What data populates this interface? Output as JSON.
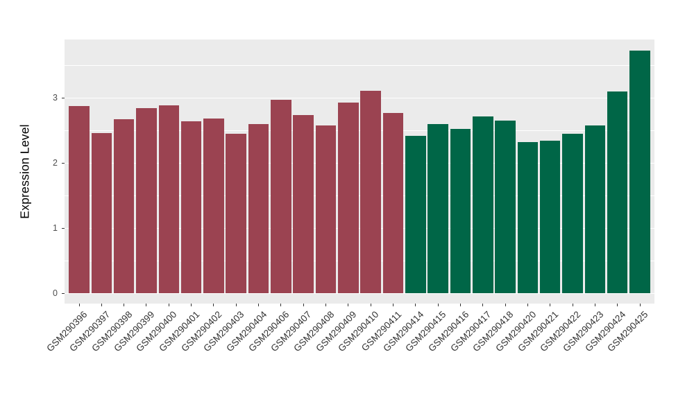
{
  "chart_data": {
    "type": "bar",
    "title": "",
    "xlabel": "",
    "ylabel": "Expression Level",
    "ylim": [
      0,
      3.89
    ],
    "yticks": [
      0,
      1,
      2,
      3
    ],
    "minor_gridlines": [
      0.5,
      1.5,
      2.5,
      3.5
    ],
    "grid": true,
    "legend_position": "none",
    "panel_background": "#EBEBEB",
    "gridline_color": "#FFFFFF",
    "group_colors": {
      "left_group": "#9B4351",
      "right_group": "#006647"
    },
    "categories": [
      "GSM290396",
      "GSM290397",
      "GSM290398",
      "GSM290399",
      "GSM290400",
      "GSM290401",
      "GSM290402",
      "GSM290403",
      "GSM290404",
      "GSM290406",
      "GSM290407",
      "GSM290408",
      "GSM290409",
      "GSM290410",
      "GSM290411",
      "GSM290414",
      "GSM290415",
      "GSM290416",
      "GSM290417",
      "GSM290418",
      "GSM290420",
      "GSM290421",
      "GSM290422",
      "GSM290423",
      "GSM290424",
      "GSM290425"
    ],
    "values": [
      2.87,
      2.46,
      2.67,
      2.84,
      2.88,
      2.64,
      2.68,
      2.45,
      2.6,
      2.97,
      2.73,
      2.57,
      2.93,
      3.11,
      2.77,
      2.42,
      2.6,
      2.52,
      2.71,
      2.65,
      2.32,
      2.34,
      2.45,
      2.57,
      3.1,
      3.72
    ],
    "colors": [
      "#9B4351",
      "#9B4351",
      "#9B4351",
      "#9B4351",
      "#9B4351",
      "#9B4351",
      "#9B4351",
      "#9B4351",
      "#9B4351",
      "#9B4351",
      "#9B4351",
      "#9B4351",
      "#9B4351",
      "#9B4351",
      "#9B4351",
      "#006647",
      "#006647",
      "#006647",
      "#006647",
      "#006647",
      "#006647",
      "#006647",
      "#006647",
      "#006647",
      "#006647",
      "#006647"
    ]
  }
}
